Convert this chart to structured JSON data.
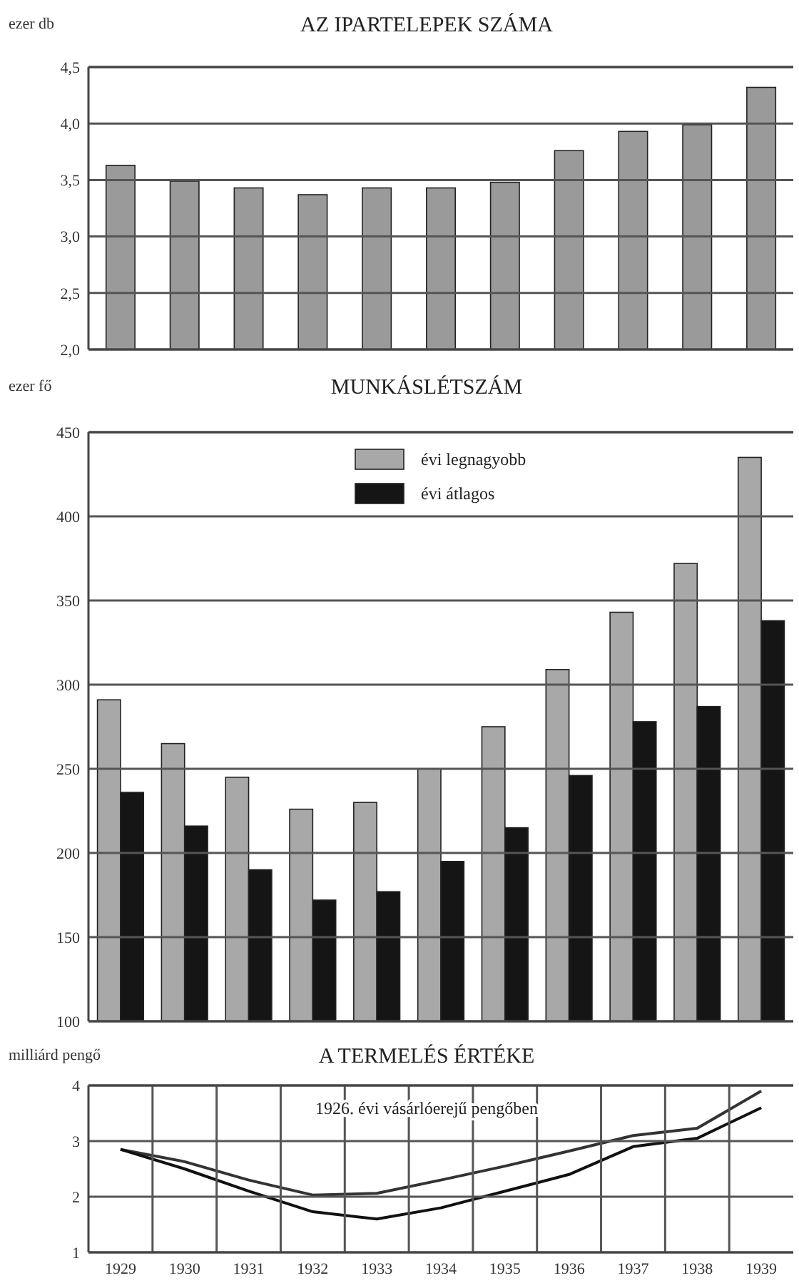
{
  "chart_data": [
    {
      "type": "bar",
      "title": "AZ IPARTELEPEK SZÁMA",
      "ylabel": "ezer db",
      "categories": [
        "1929",
        "1930",
        "1931",
        "1932",
        "1933",
        "1934",
        "1935",
        "1936",
        "1937",
        "1938",
        "1939"
      ],
      "series": [
        {
          "color": "#9a9a9a",
          "values": [
            3.63,
            3.49,
            3.43,
            3.37,
            3.43,
            3.43,
            3.48,
            3.76,
            3.93,
            3.99,
            4.32
          ]
        }
      ],
      "ylim": [
        2,
        4.5
      ],
      "yticks": [
        {
          "value": 2,
          "label": "2,0"
        },
        {
          "value": 2.5,
          "label": "2,5"
        },
        {
          "value": 3,
          "label": "3,0"
        },
        {
          "value": 3.5,
          "label": "3,5"
        },
        {
          "value": 4,
          "label": "4,0"
        },
        {
          "value": 4.5,
          "label": "4,5"
        }
      ],
      "grid": "y",
      "tick_labels": "y"
    },
    {
      "type": "bar",
      "title": "MUNKÁSLÉTSZÁM",
      "ylabel": "ezer fő",
      "categories": [
        "1929",
        "1930",
        "1931",
        "1932",
        "1933",
        "1934",
        "1935",
        "1936",
        "1937",
        "1938",
        "1939"
      ],
      "series": [
        {
          "name": "évi legnagyobb",
          "color": "#a8a8a8",
          "values": [
            291,
            265,
            245,
            226,
            230,
            250,
            275,
            309,
            343,
            372,
            435
          ]
        },
        {
          "name": "évi átlagos",
          "color": "#151515",
          "values": [
            236,
            216,
            190,
            172,
            177,
            195,
            215,
            246,
            278,
            287,
            338
          ]
        }
      ],
      "ylim": [
        100,
        450
      ],
      "yticks": [
        100,
        150,
        200,
        250,
        300,
        350,
        400,
        450
      ],
      "grid": "y",
      "legend": "top",
      "tick_labels": "y"
    },
    {
      "type": "line",
      "title": "A TERMELÉS ÉRTÉKE",
      "ylabel": "milliárd pengő",
      "annotations": [
        "1926. évi vásárlóerejű pengőben"
      ],
      "categories": [
        "1929",
        "1930",
        "1931",
        "1932",
        "1933",
        "1934",
        "1935",
        "1936",
        "1937",
        "1938",
        "1939"
      ],
      "series": [
        {
          "color": "#333333",
          "values": [
            2.85,
            2.63,
            2.3,
            2.03,
            2.06,
            2.3,
            2.55,
            2.82,
            3.1,
            3.23,
            3.9
          ]
        },
        {
          "color": "#111111",
          "values": [
            2.85,
            2.5,
            2.1,
            1.73,
            1.6,
            1.8,
            2.1,
            2.4,
            2.9,
            3.05,
            3.6
          ]
        }
      ],
      "ylim": [
        1,
        4
      ],
      "yticks": [
        1,
        2,
        3,
        4
      ],
      "grid": true,
      "marker": "none",
      "line_style": "solid"
    }
  ]
}
